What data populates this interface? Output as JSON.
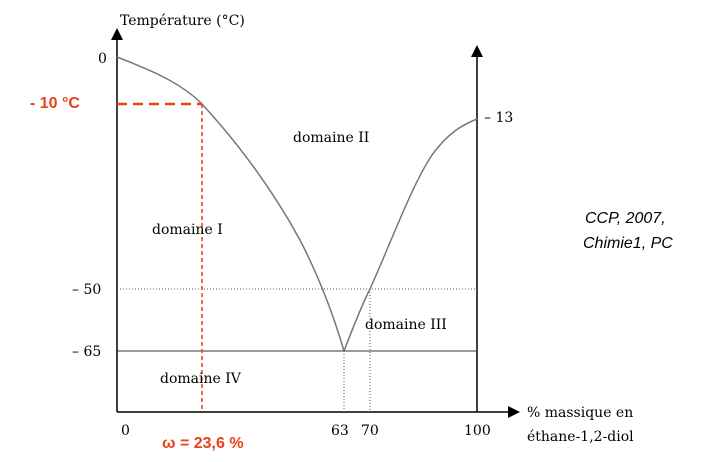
{
  "axes": {
    "y_title": "Température (°C)",
    "x_title_line1": "% massique en",
    "x_title_line2": "éthane-1,2-diol",
    "y_ticks": [
      "0",
      "– 50",
      "– 65"
    ],
    "right_tick": "– 13",
    "x_ticks": [
      "0",
      "63",
      "70",
      "100"
    ]
  },
  "regions": {
    "d1": "domaine I",
    "d2": "domaine II",
    "d3": "domaine III",
    "d4": "domaine IV"
  },
  "annotation": {
    "temp_label": "- 10 °C",
    "omega_label": "ω = 23,6 %",
    "color": "#e8401c"
  },
  "credit": {
    "line1": "CCP, 2007,",
    "line2": "Chimie1, PC"
  },
  "chart_data": {
    "type": "line",
    "x_range": [
      0,
      100
    ],
    "y_range": [
      -65,
      0
    ],
    "eutectic": {
      "x": 63,
      "y": -65
    },
    "left_liquidus": [
      {
        "x": 0,
        "y": 0
      },
      {
        "x": 23.6,
        "y": -10
      },
      {
        "x": 63,
        "y": -65
      }
    ],
    "right_liquidus": [
      {
        "x": 63,
        "y": -65
      },
      {
        "x": 70,
        "y": -50
      },
      {
        "x": 100,
        "y": -13
      }
    ],
    "reading": {
      "x": 23.6,
      "y": -10
    }
  }
}
